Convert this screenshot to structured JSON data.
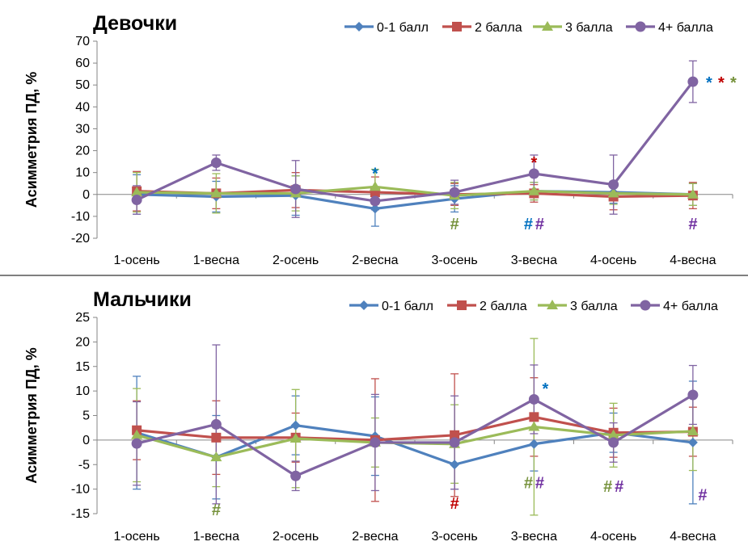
{
  "chart_data": [
    {
      "type": "line",
      "title": "Девочки",
      "ylabel": "Асимметрия ПД, %",
      "xlabel": "",
      "categories": [
        "1-осень",
        "1-весна",
        "2-осень",
        "2-весна",
        "3-осень",
        "3-весна",
        "4-осень",
        "4-весна"
      ],
      "ylim": [
        -20,
        70
      ],
      "yticks": [
        -20,
        -10,
        0,
        10,
        20,
        30,
        40,
        50,
        60,
        70
      ],
      "legend_position": "top-right",
      "series": [
        {
          "name": "0-1 балл",
          "color": "#4F81BD",
          "marker": "diamond",
          "values": [
            0,
            -1,
            -0.5,
            -6.5,
            -2,
            1.5,
            1,
            0
          ],
          "error": [
            9,
            7,
            9,
            8,
            6,
            4,
            5,
            5
          ]
        },
        {
          "name": "2 балла",
          "color": "#C0504D",
          "marker": "square",
          "values": [
            1.5,
            0.5,
            2,
            1,
            0,
            0.5,
            -1,
            -0.5
          ],
          "error": [
            9,
            7,
            8,
            7,
            5,
            4,
            6,
            6
          ]
        },
        {
          "name": "3 балла",
          "color": "#9BBB59",
          "marker": "triangle",
          "values": [
            1,
            0.5,
            0.5,
            3.5,
            -0.5,
            1.5,
            0.5,
            0
          ],
          "error": [
            9,
            9,
            8,
            8,
            6,
            4,
            5,
            5
          ]
        },
        {
          "name": "4+ балла",
          "color": "#8064A2",
          "marker": "circle",
          "values": [
            -2.5,
            14.5,
            2.5,
            -3,
            1,
            9.5,
            4.5,
            51.5
          ],
          "error": [
            6.5,
            3.5,
            13,
            4,
            5.5,
            8.5,
            13.5,
            9.5
          ]
        }
      ],
      "annotations": [
        {
          "text": "*",
          "color": "#0070C0",
          "x": "2-весна",
          "y": 10
        },
        {
          "text": "#",
          "color": "#76923C",
          "x": "3-осень",
          "y": -13
        },
        {
          "text": "*",
          "color": "#C00000",
          "x": "3-весна",
          "y": 15
        },
        {
          "text": "#",
          "color": "#0070C0",
          "x": "3-весна",
          "y": -13,
          "dx": -7
        },
        {
          "text": "#",
          "color": "#7030A0",
          "x": "3-весна",
          "y": -13,
          "dx": 7
        },
        {
          "text": "*",
          "color": "#0070C0",
          "x": "4-весна",
          "y": 51.5,
          "dx": 20
        },
        {
          "text": "*",
          "color": "#C00000",
          "x": "4-весна",
          "y": 51.5,
          "dx": 35
        },
        {
          "text": "*",
          "color": "#76923C",
          "x": "4-весна",
          "y": 51.5,
          "dx": 50
        },
        {
          "text": "#",
          "color": "#7030A0",
          "x": "4-весна",
          "y": -13
        }
      ]
    },
    {
      "type": "line",
      "title": "Мальчики",
      "ylabel": "Асимметрия ПД, %",
      "xlabel": "",
      "categories": [
        "1-осень",
        "1-весна",
        "2-осень",
        "2-весна",
        "3-осень",
        "3-весна",
        "4-осень",
        "4-весна"
      ],
      "ylim": [
        -15,
        25
      ],
      "yticks": [
        -15,
        -10,
        -5,
        0,
        5,
        10,
        15,
        20,
        25
      ],
      "legend_position": "top-right",
      "series": [
        {
          "name": "0-1 балл",
          "color": "#4F81BD",
          "marker": "diamond",
          "values": [
            1.5,
            -3.5,
            3,
            0.8,
            -5,
            -0.8,
            1.5,
            -0.5
          ],
          "error": [
            11.5,
            8.5,
            6,
            8,
            5,
            5.5,
            4,
            12.5
          ]
        },
        {
          "name": "2 балла",
          "color": "#C0504D",
          "marker": "square",
          "values": [
            2,
            0.5,
            0.5,
            0,
            1,
            4.7,
            1.5,
            1.7
          ],
          "error": [
            6,
            7.5,
            5,
            12.5,
            12.5,
            8,
            5,
            5
          ]
        },
        {
          "name": "3 балла",
          "color": "#9BBB59",
          "marker": "triangle",
          "values": [
            1,
            -3.5,
            0.3,
            -0.5,
            -0.8,
            2.7,
            1,
            1.8
          ],
          "error": [
            9.5,
            6,
            10,
            5,
            8,
            18,
            6.5,
            8
          ]
        },
        {
          "name": "4+ балла",
          "color": "#8064A2",
          "marker": "circle",
          "values": [
            -0.7,
            3.2,
            -7.3,
            -0.5,
            -0.5,
            8.3,
            -0.5,
            9.2
          ],
          "error": [
            8.5,
            16.2,
            3,
            9.8,
            9.5,
            7,
            4,
            6
          ]
        }
      ],
      "annotations": [
        {
          "text": "#",
          "color": "#76923C",
          "x": "1-весна",
          "y": -14
        },
        {
          "text": "#",
          "color": "#C00000",
          "x": "3-осень",
          "y": -12.7
        },
        {
          "text": "*",
          "color": "#0070C0",
          "x": "3-весна",
          "y": 10.7,
          "dx": 14
        },
        {
          "text": "#",
          "color": "#76923C",
          "x": "3-весна",
          "y": -8.5,
          "dx": -7
        },
        {
          "text": "#",
          "color": "#7030A0",
          "x": "3-весна",
          "y": -8.5,
          "dx": 7
        },
        {
          "text": "#",
          "color": "#76923C",
          "x": "4-осень",
          "y": -9.2,
          "dx": -7
        },
        {
          "text": "#",
          "color": "#7030A0",
          "x": "4-осень",
          "y": -9.2,
          "dx": 7
        },
        {
          "text": "#",
          "color": "#7030A0",
          "x": "4-весна",
          "y": -11,
          "dx": 12
        }
      ]
    }
  ]
}
